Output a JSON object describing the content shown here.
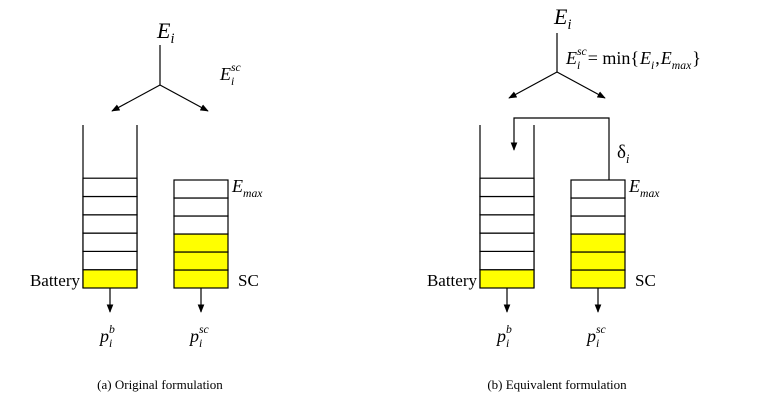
{
  "panels": [
    {
      "input": {
        "base": "E",
        "sub": "i"
      },
      "split": [
        {
          "base": "E",
          "sub": "i",
          "sup": "sc"
        }
      ],
      "capacity": {
        "base": "E",
        "sub": "max"
      },
      "battery": "Battery",
      "sc": "SC",
      "battery_output": {
        "base": "p",
        "sub": "i",
        "sup": "b"
      },
      "sc_output": {
        "base": "p",
        "sub": "i",
        "sup": "sc"
      },
      "caption": "(a) Original formulation"
    },
    {
      "input": {
        "base": "E",
        "sub": "i"
      },
      "split": [
        {
          "base": "E",
          "sub": "i",
          "sup": "sc"
        },
        {
          "base": " = min{"
        },
        {
          "base": "E",
          "sub": "i"
        },
        {
          "base": ", "
        },
        {
          "base": "E",
          "sub": "max"
        },
        {
          "base": "}"
        }
      ],
      "overflow": {
        "base": "δ",
        "sub": "i"
      },
      "capacity": {
        "base": "E",
        "sub": "max"
      },
      "battery": "Battery",
      "sc": "SC",
      "battery_output": {
        "base": "p",
        "sub": "i",
        "sup": "b"
      },
      "sc_output": {
        "base": "p",
        "sub": "i",
        "sup": "sc"
      },
      "caption": "(b) Equivalent formulation"
    }
  ]
}
